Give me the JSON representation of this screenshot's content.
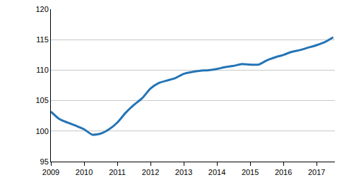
{
  "chart_data": {
    "type": "line",
    "x": [
      2009,
      2009.25,
      2009.5,
      2009.75,
      2010,
      2010.25,
      2010.5,
      2010.75,
      2011,
      2011.25,
      2011.5,
      2011.75,
      2012,
      2012.25,
      2012.5,
      2012.75,
      2013,
      2013.25,
      2013.5,
      2013.75,
      2014,
      2014.25,
      2014.5,
      2014.75,
      2015,
      2015.25,
      2015.5,
      2015.75,
      2016,
      2016.25,
      2016.5,
      2016.75,
      2017,
      2017.25,
      2017.5
    ],
    "values": [
      103.2,
      102.0,
      101.4,
      100.9,
      100.3,
      99.4,
      99.6,
      100.3,
      101.4,
      103.0,
      104.3,
      105.4,
      107.0,
      107.9,
      108.3,
      108.7,
      109.4,
      109.7,
      109.9,
      110.0,
      110.2,
      110.5,
      110.7,
      111.0,
      110.9,
      110.9,
      111.6,
      112.1,
      112.5,
      113.0,
      113.3,
      113.7,
      114.1,
      114.6,
      115.4
    ],
    "color": "#2474b5",
    "xlim": [
      2009,
      2017.55
    ],
    "xticks": [
      2009,
      2010,
      2011,
      2012,
      2013,
      2014,
      2015,
      2016,
      2017
    ],
    "ylim": [
      95,
      120
    ],
    "yticks": [
      95,
      100,
      105,
      110,
      115,
      120
    ],
    "grid": true
  }
}
